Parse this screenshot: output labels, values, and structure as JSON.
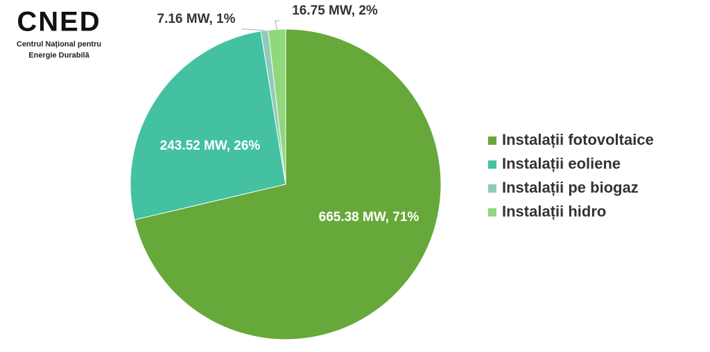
{
  "logo": {
    "mark": "CNED",
    "line1": "Centrul Național pentru",
    "line2": "Energie Durabilă"
  },
  "chart_data": {
    "type": "pie",
    "categories": [
      "Instalații fotovoltaice",
      "Instalații eoliene",
      "Instalații pe biogaz",
      "Instalații hidro"
    ],
    "values": [
      665.38,
      243.52,
      7.16,
      16.75
    ],
    "value_labels": [
      "665.38 MW, 71%",
      "243.52 MW, 26%",
      "7.16 MW, 1%",
      "16.75 MW, 2%"
    ],
    "colors": [
      "#67a83a",
      "#43c1a0",
      "#8ecbb8",
      "#8fd87c"
    ],
    "legend": "right"
  }
}
